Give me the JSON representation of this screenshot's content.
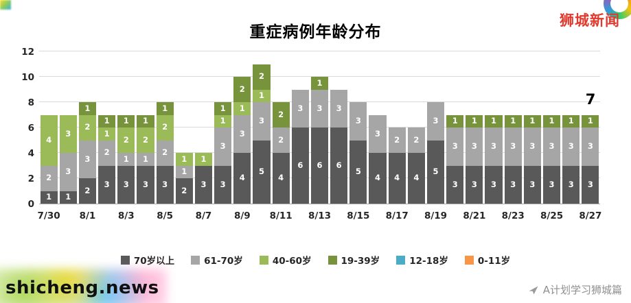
{
  "watermarks": {
    "top_right": "狮城新闻",
    "bottom_left": "shicheng.news",
    "bottom_right": "A计划学习狮城篇"
  },
  "colors": {
    "watermark_red": "#e03a2f",
    "watermark_gray": "#8f8f8f"
  },
  "chart_data": {
    "type": "bar",
    "stacked": true,
    "title": "重症病例年龄分布",
    "categories": [
      "7/30",
      "7/31",
      "8/1",
      "8/2",
      "8/3",
      "8/4",
      "8/5",
      "8/6",
      "8/7",
      "8/8",
      "8/9",
      "8/10",
      "8/11",
      "8/12",
      "8/13",
      "8/14",
      "8/15",
      "8/16",
      "8/17",
      "8/18",
      "8/19",
      "8/20",
      "8/21",
      "8/22",
      "8/23",
      "8/24",
      "8/25",
      "8/26",
      "8/27"
    ],
    "x_tick_labels": [
      "7/30",
      "8/1",
      "8/3",
      "8/5",
      "8/7",
      "8/9",
      "8/11",
      "8/13",
      "8/15",
      "8/17",
      "8/19",
      "8/21",
      "8/23",
      "8/25",
      "8/27"
    ],
    "series": [
      {
        "name": "70岁以上",
        "color": "#595959",
        "values": [
          1,
          1,
          2,
          3,
          3,
          3,
          3,
          2,
          3,
          3,
          4,
          5,
          4,
          6,
          6,
          6,
          5,
          4,
          4,
          4,
          5,
          3,
          3,
          3,
          3,
          3,
          3,
          3,
          3
        ]
      },
      {
        "name": "61-70岁",
        "color": "#a6a6a6",
        "values": [
          2,
          3,
          3,
          2,
          1,
          1,
          2,
          1,
          0,
          3,
          3,
          3,
          2,
          3,
          3,
          3,
          3,
          3,
          2,
          2,
          3,
          3,
          3,
          3,
          3,
          3,
          3,
          3,
          3
        ]
      },
      {
        "name": "40-60岁",
        "color": "#9bbb59",
        "values": [
          4,
          3,
          2,
          1,
          2,
          2,
          2,
          1,
          1,
          1,
          1,
          1,
          0,
          0,
          0,
          0,
          0,
          0,
          0,
          0,
          0,
          0,
          0,
          0,
          0,
          0,
          0,
          0,
          0
        ]
      },
      {
        "name": "19-39岁",
        "color": "#77933c",
        "values": [
          0,
          0,
          1,
          1,
          1,
          1,
          1,
          0,
          0,
          1,
          2,
          2,
          2,
          0,
          1,
          0,
          0,
          0,
          0,
          0,
          0,
          1,
          1,
          1,
          1,
          1,
          1,
          1,
          1
        ]
      },
      {
        "name": "12-18岁",
        "color": "#4bacc6",
        "values": [
          0,
          0,
          0,
          0,
          0,
          0,
          0,
          0,
          0,
          0,
          0,
          0,
          0,
          0,
          0,
          0,
          0,
          0,
          0,
          0,
          0,
          0,
          0,
          0,
          0,
          0,
          0,
          0,
          0
        ]
      },
      {
        "name": "0-11岁",
        "color": "#f79646",
        "values": [
          0,
          0,
          0,
          0,
          0,
          0,
          0,
          0,
          0,
          0,
          0,
          0,
          0,
          0,
          0,
          0,
          0,
          0,
          0,
          0,
          0,
          0,
          0,
          0,
          0,
          0,
          0,
          0,
          0
        ]
      }
    ],
    "ylim": [
      0,
      12
    ],
    "yticks": [
      0,
      2,
      4,
      6,
      8,
      10,
      12
    ],
    "grid": true,
    "legend_position": "bottom",
    "annotations": [
      {
        "text": "7",
        "category": "8/27"
      }
    ]
  }
}
